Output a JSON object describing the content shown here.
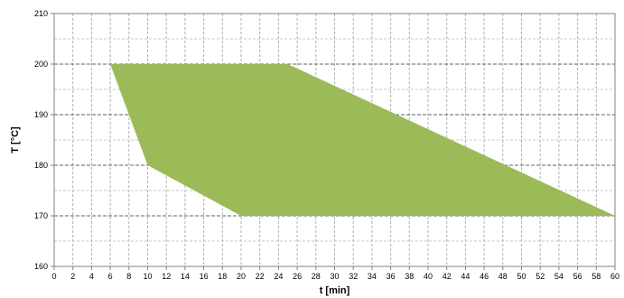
{
  "chart_data": {
    "type": "area",
    "title": "",
    "xlabel": "t [min]",
    "ylabel": "T  [°C]",
    "xlim": [
      0,
      60
    ],
    "ylim": [
      160,
      210
    ],
    "x_ticks": [
      0,
      2,
      4,
      6,
      8,
      10,
      12,
      14,
      16,
      18,
      20,
      22,
      24,
      26,
      28,
      30,
      32,
      34,
      36,
      38,
      40,
      42,
      44,
      46,
      48,
      50,
      52,
      54,
      56,
      58,
      60
    ],
    "y_ticks": [
      160,
      170,
      180,
      190,
      200,
      210
    ],
    "grid": {
      "vertical": "dashed",
      "horizontal_major": "dashed-dark"
    },
    "region": {
      "color": "#9bbb59",
      "points": [
        {
          "x": 6,
          "y": 200
        },
        {
          "x": 25,
          "y": 200
        },
        {
          "x": 60,
          "y": 170
        },
        {
          "x": 20,
          "y": 170
        },
        {
          "x": 10,
          "y": 180
        }
      ]
    }
  }
}
